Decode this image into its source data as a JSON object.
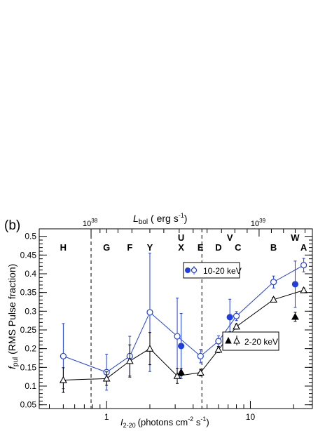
{
  "chart_data": {
    "type": "scatter",
    "panel_label": "(b)",
    "xlabel": "I",
    "xlabel_sub": "2-20",
    "xlabel_units": "(photons cm",
    "xlabel_units_sup": "-2",
    "xlabel_units_end": " s",
    "xlabel_units_sup2": "-1",
    "xlabel_close": ")",
    "ylabel": "f",
    "ylabel_sub": "pul",
    "ylabel_rest": " (RMS Pulse fraction)",
    "top_axis_label": "L",
    "top_axis_sub": "bol",
    "top_axis_units": " ( erg s",
    "top_axis_units_sup": "-1",
    "top_axis_close": ")",
    "xscale": "log",
    "xlim": [
      0.34,
      27
    ],
    "ylim": [
      0.04,
      0.52
    ],
    "yticks": [
      "0.05",
      "0.1",
      "0.15",
      "0.2",
      "0.25",
      "0.3",
      "0.35",
      "0.4",
      "0.45",
      "0.5"
    ],
    "ytick_values": [
      0.05,
      0.1,
      0.15,
      0.2,
      0.25,
      0.3,
      0.35,
      0.4,
      0.45,
      0.5
    ],
    "xticks": [
      "1",
      "10"
    ],
    "xtick_values": [
      1,
      10
    ],
    "top_ticks": [
      {
        "base": "10",
        "exp": "38",
        "x": 0.78
      },
      {
        "base": "10",
        "exp": "39",
        "x": 11.5
      }
    ],
    "vlines": [
      0.78,
      4.6
    ],
    "obs_labels": [
      {
        "text": "H",
        "x": 0.5,
        "row": 2
      },
      {
        "text": "G",
        "x": 1.0,
        "row": 2
      },
      {
        "text": "F",
        "x": 1.45,
        "row": 2
      },
      {
        "text": "Y",
        "x": 2.0,
        "row": 2
      },
      {
        "text": "U",
        "x": 3.3,
        "row": 1
      },
      {
        "text": "X",
        "x": 3.3,
        "row": 2
      },
      {
        "text": "E",
        "x": 4.5,
        "row": 2
      },
      {
        "text": "D",
        "x": 6.0,
        "row": 2
      },
      {
        "text": "V",
        "x": 7.2,
        "row": 1
      },
      {
        "text": "C",
        "x": 8.2,
        "row": 2
      },
      {
        "text": "B",
        "x": 14.5,
        "row": 2
      },
      {
        "text": "W",
        "x": 20.5,
        "row": 1
      },
      {
        "text": "A",
        "x": 23.5,
        "row": 2
      }
    ],
    "series": [
      {
        "name": "10-20 keV",
        "color": "#1f3fe0",
        "open_marker": "circle",
        "open": {
          "x": [
            0.5,
            1.0,
            1.45,
            2.0,
            3.1,
            4.5,
            6.0,
            8.0,
            14.5,
            23.5
          ],
          "y": [
            0.18,
            0.137,
            0.18,
            0.297,
            0.233,
            0.18,
            0.22,
            0.287,
            0.378,
            0.423
          ],
          "err": [
            0.087,
            0.048,
            0.053,
            0.158,
            0.102,
            0.018,
            0.014,
            0.012,
            0.016,
            0.018
          ]
        },
        "filled": {
          "x": [
            3.3,
            7.2,
            20.5
          ],
          "y": [
            0.207,
            0.284,
            0.372
          ],
          "err": [
            0.087,
            0.048,
            0.062
          ]
        }
      },
      {
        "name": "2-20 keV",
        "color": "#000000",
        "open_marker": "triangle",
        "open": {
          "x": [
            0.5,
            1.0,
            1.45,
            2.0,
            3.1,
            4.5,
            6.0,
            8.0,
            14.5,
            23.5
          ],
          "y": [
            0.116,
            0.12,
            0.167,
            0.2,
            0.127,
            0.136,
            0.197,
            0.259,
            0.331,
            0.356
          ],
          "err": [
            0.033,
            0.018,
            0.043,
            0.043,
            0.02,
            0.009,
            0.008,
            0.007,
            0.006,
            0.006
          ]
        },
        "filled": {
          "x": [
            3.3,
            7.2,
            20.5
          ],
          "y": [
            0.137,
            0.235,
            0.285
          ],
          "err": [
            0.01,
            0.01,
            0.012
          ]
        }
      }
    ]
  }
}
